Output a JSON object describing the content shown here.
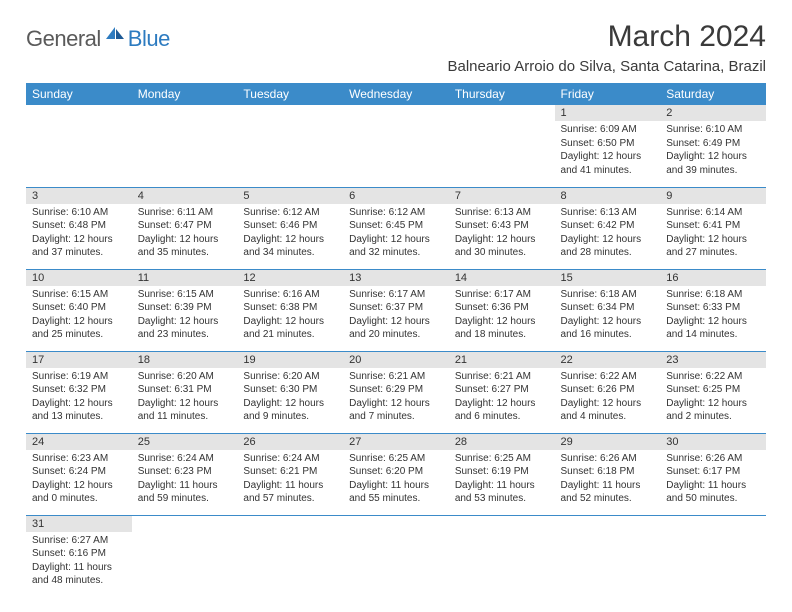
{
  "logo": {
    "dark": "General",
    "blue": "Blue"
  },
  "title": "March 2024",
  "location": "Balneario Arroio do Silva, Santa Catarina, Brazil",
  "colors": {
    "header_bg": "#3b8bc9",
    "header_fg": "#ffffff",
    "daynum_bg": "#e4e4e4",
    "rule": "#3b8bc9",
    "logo_blue": "#2d7bc0",
    "logo_dark": "#5a5a5a"
  },
  "weekdays": [
    "Sunday",
    "Monday",
    "Tuesday",
    "Wednesday",
    "Thursday",
    "Friday",
    "Saturday"
  ],
  "weeks": [
    [
      null,
      null,
      null,
      null,
      null,
      {
        "n": "1",
        "sr": "6:09 AM",
        "ss": "6:50 PM",
        "dl": "12 hours and 41 minutes."
      },
      {
        "n": "2",
        "sr": "6:10 AM",
        "ss": "6:49 PM",
        "dl": "12 hours and 39 minutes."
      }
    ],
    [
      {
        "n": "3",
        "sr": "6:10 AM",
        "ss": "6:48 PM",
        "dl": "12 hours and 37 minutes."
      },
      {
        "n": "4",
        "sr": "6:11 AM",
        "ss": "6:47 PM",
        "dl": "12 hours and 35 minutes."
      },
      {
        "n": "5",
        "sr": "6:12 AM",
        "ss": "6:46 PM",
        "dl": "12 hours and 34 minutes."
      },
      {
        "n": "6",
        "sr": "6:12 AM",
        "ss": "6:45 PM",
        "dl": "12 hours and 32 minutes."
      },
      {
        "n": "7",
        "sr": "6:13 AM",
        "ss": "6:43 PM",
        "dl": "12 hours and 30 minutes."
      },
      {
        "n": "8",
        "sr": "6:13 AM",
        "ss": "6:42 PM",
        "dl": "12 hours and 28 minutes."
      },
      {
        "n": "9",
        "sr": "6:14 AM",
        "ss": "6:41 PM",
        "dl": "12 hours and 27 minutes."
      }
    ],
    [
      {
        "n": "10",
        "sr": "6:15 AM",
        "ss": "6:40 PM",
        "dl": "12 hours and 25 minutes."
      },
      {
        "n": "11",
        "sr": "6:15 AM",
        "ss": "6:39 PM",
        "dl": "12 hours and 23 minutes."
      },
      {
        "n": "12",
        "sr": "6:16 AM",
        "ss": "6:38 PM",
        "dl": "12 hours and 21 minutes."
      },
      {
        "n": "13",
        "sr": "6:17 AM",
        "ss": "6:37 PM",
        "dl": "12 hours and 20 minutes."
      },
      {
        "n": "14",
        "sr": "6:17 AM",
        "ss": "6:36 PM",
        "dl": "12 hours and 18 minutes."
      },
      {
        "n": "15",
        "sr": "6:18 AM",
        "ss": "6:34 PM",
        "dl": "12 hours and 16 minutes."
      },
      {
        "n": "16",
        "sr": "6:18 AM",
        "ss": "6:33 PM",
        "dl": "12 hours and 14 minutes."
      }
    ],
    [
      {
        "n": "17",
        "sr": "6:19 AM",
        "ss": "6:32 PM",
        "dl": "12 hours and 13 minutes."
      },
      {
        "n": "18",
        "sr": "6:20 AM",
        "ss": "6:31 PM",
        "dl": "12 hours and 11 minutes."
      },
      {
        "n": "19",
        "sr": "6:20 AM",
        "ss": "6:30 PM",
        "dl": "12 hours and 9 minutes."
      },
      {
        "n": "20",
        "sr": "6:21 AM",
        "ss": "6:29 PM",
        "dl": "12 hours and 7 minutes."
      },
      {
        "n": "21",
        "sr": "6:21 AM",
        "ss": "6:27 PM",
        "dl": "12 hours and 6 minutes."
      },
      {
        "n": "22",
        "sr": "6:22 AM",
        "ss": "6:26 PM",
        "dl": "12 hours and 4 minutes."
      },
      {
        "n": "23",
        "sr": "6:22 AM",
        "ss": "6:25 PM",
        "dl": "12 hours and 2 minutes."
      }
    ],
    [
      {
        "n": "24",
        "sr": "6:23 AM",
        "ss": "6:24 PM",
        "dl": "12 hours and 0 minutes."
      },
      {
        "n": "25",
        "sr": "6:24 AM",
        "ss": "6:23 PM",
        "dl": "11 hours and 59 minutes."
      },
      {
        "n": "26",
        "sr": "6:24 AM",
        "ss": "6:21 PM",
        "dl": "11 hours and 57 minutes."
      },
      {
        "n": "27",
        "sr": "6:25 AM",
        "ss": "6:20 PM",
        "dl": "11 hours and 55 minutes."
      },
      {
        "n": "28",
        "sr": "6:25 AM",
        "ss": "6:19 PM",
        "dl": "11 hours and 53 minutes."
      },
      {
        "n": "29",
        "sr": "6:26 AM",
        "ss": "6:18 PM",
        "dl": "11 hours and 52 minutes."
      },
      {
        "n": "30",
        "sr": "6:26 AM",
        "ss": "6:17 PM",
        "dl": "11 hours and 50 minutes."
      }
    ],
    [
      {
        "n": "31",
        "sr": "6:27 AM",
        "ss": "6:16 PM",
        "dl": "11 hours and 48 minutes."
      },
      null,
      null,
      null,
      null,
      null,
      null
    ]
  ],
  "labels": {
    "sunrise": "Sunrise:",
    "sunset": "Sunset:",
    "daylight": "Daylight:"
  }
}
